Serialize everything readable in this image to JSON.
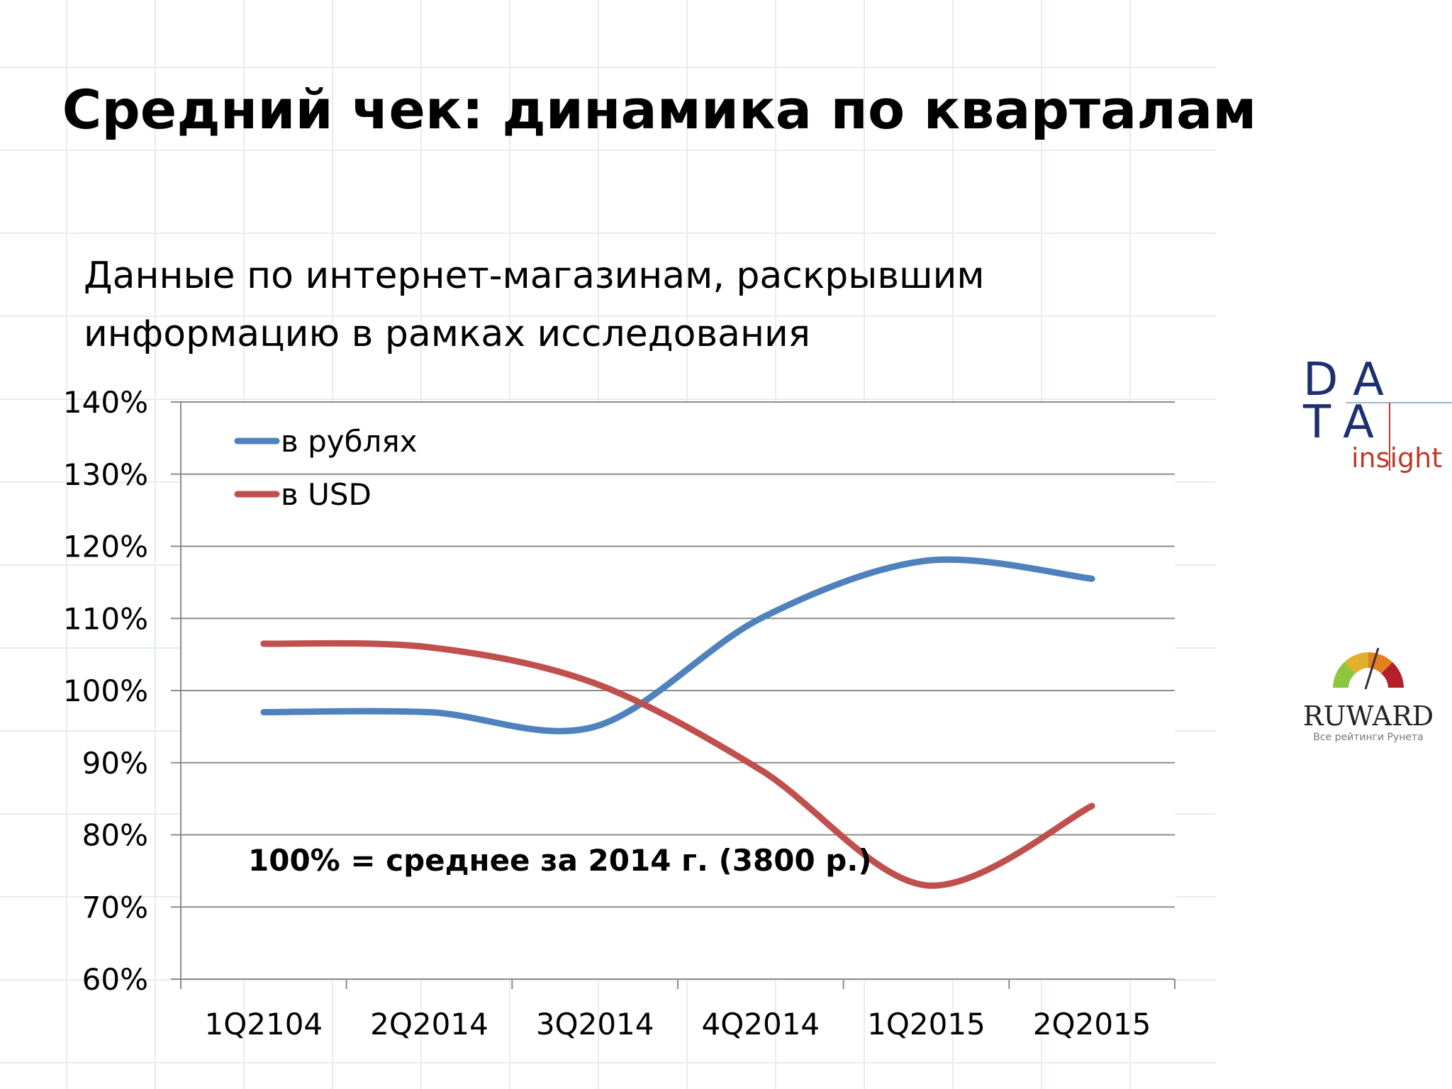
{
  "slide": {
    "title": "Средний чек: динамика по кварталам",
    "subtitle_line1": "Данные по интернет-магазинам, раскрывшим",
    "subtitle_line2": "информацию в рамках исследования"
  },
  "chart_data": {
    "type": "line",
    "categories": [
      "1Q2104",
      "2Q2014",
      "3Q2014",
      "4Q2014",
      "1Q2015",
      "2Q2015"
    ],
    "series": [
      {
        "name": "в рублях",
        "color": "#4f81bd",
        "values": [
          97,
          97,
          95,
          110,
          118,
          115.5
        ]
      },
      {
        "name": "в USD",
        "color": "#c0504d",
        "values": [
          106.5,
          106,
          101,
          89,
          73,
          84
        ]
      }
    ],
    "ylim": [
      60,
      140
    ],
    "yticks": [
      "60%",
      "70%",
      "80%",
      "90%",
      "100%",
      "110%",
      "120%",
      "130%",
      "140%"
    ],
    "yticks_values": [
      60,
      70,
      80,
      90,
      100,
      110,
      120,
      130,
      140
    ],
    "grid": true,
    "legend_position": "top-left",
    "annotation": "100% = среднее за 2014 г. (3800 р.)",
    "xlabel": "",
    "ylabel": ""
  },
  "logos": {
    "data_insight": {
      "letters_row1": "DA",
      "letters_row2": "TA",
      "word": "insight"
    },
    "ruward": {
      "word": "RUWARD",
      "tagline": "Все рейтинги Рунета"
    }
  }
}
